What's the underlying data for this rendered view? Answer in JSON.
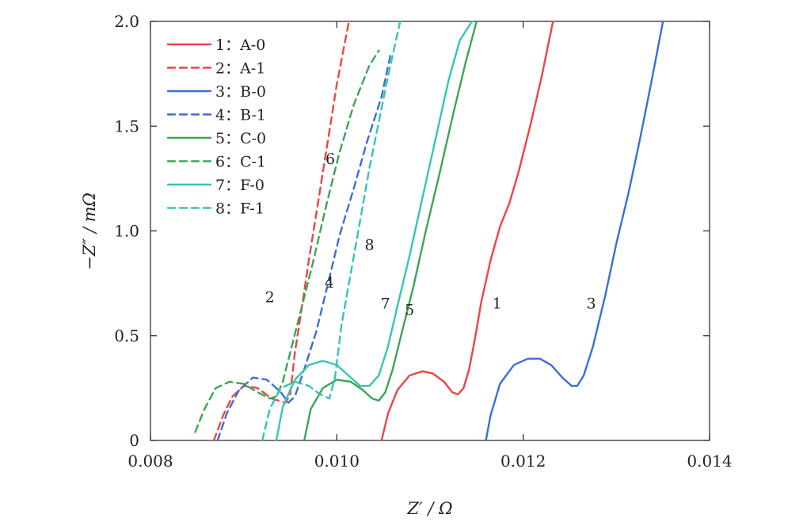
{
  "chart_data": {
    "type": "line",
    "title": "",
    "xlabel": "Z′ / Ω",
    "ylabel": "−Z″ / mΩ",
    "xlim": [
      0.008,
      0.014
    ],
    "ylim": [
      0,
      2.0
    ],
    "x_ticks": [
      0.008,
      0.01,
      0.012,
      0.014
    ],
    "x_tick_labels": [
      "0.008",
      "0.010",
      "0.012",
      "0.014"
    ],
    "y_ticks": [
      0,
      0.5,
      1.0,
      1.5,
      2.0
    ],
    "y_tick_labels": [
      "0",
      "0.5",
      "1.0",
      "1.5",
      "2.0"
    ],
    "grid": false,
    "legend_position": "top-left",
    "series": [
      {
        "id": "1",
        "name": "1：A-0",
        "color": "#ef4444",
        "dash": "solid",
        "x": [
          0.01048,
          0.01055,
          0.01065,
          0.01078,
          0.01092,
          0.01103,
          0.01115,
          0.01124,
          0.0113,
          0.01136,
          0.01142,
          0.01148,
          0.01155,
          0.01165,
          0.01175,
          0.01185,
          0.01195,
          0.01208,
          0.0122,
          0.01232
        ],
        "y": [
          0.0,
          0.13,
          0.24,
          0.31,
          0.33,
          0.32,
          0.28,
          0.23,
          0.22,
          0.25,
          0.34,
          0.48,
          0.66,
          0.86,
          1.02,
          1.13,
          1.28,
          1.51,
          1.74,
          2.0
        ]
      },
      {
        "id": "2",
        "name": "2：A-1",
        "color": "#ef4444",
        "dash": "dashed",
        "x": [
          0.00868,
          0.00878,
          0.00888,
          0.009,
          0.00915,
          0.0093,
          0.00945,
          0.0095,
          0.00955,
          0.00962,
          0.0097,
          0.0098,
          0.0099,
          0.01,
          0.01013
        ],
        "y": [
          0.0,
          0.12,
          0.21,
          0.26,
          0.25,
          0.2,
          0.18,
          0.22,
          0.42,
          0.62,
          0.86,
          1.14,
          1.42,
          1.7,
          2.0
        ]
      },
      {
        "id": "3",
        "name": "3：B-0",
        "color": "#3b6fd6",
        "dash": "solid",
        "x": [
          0.0116,
          0.01165,
          0.01175,
          0.0119,
          0.01205,
          0.01218,
          0.0123,
          0.01242,
          0.01252,
          0.01258,
          0.01265,
          0.01275,
          0.01288,
          0.013,
          0.01313,
          0.01325,
          0.01338,
          0.0135
        ],
        "y": [
          0.0,
          0.12,
          0.27,
          0.36,
          0.39,
          0.39,
          0.36,
          0.3,
          0.26,
          0.26,
          0.31,
          0.45,
          0.69,
          0.94,
          1.18,
          1.43,
          1.72,
          2.0
        ]
      },
      {
        "id": "4",
        "name": "4：B-1",
        "color": "#3b6fd6",
        "dash": "dashed",
        "x": [
          0.00872,
          0.00882,
          0.00895,
          0.0091,
          0.00925,
          0.0094,
          0.00948,
          0.00955,
          0.00965,
          0.00978,
          0.0099,
          0.01003,
          0.01018,
          0.01032,
          0.01048,
          0.01058
        ],
        "y": [
          0.0,
          0.13,
          0.24,
          0.3,
          0.29,
          0.23,
          0.18,
          0.21,
          0.34,
          0.52,
          0.74,
          0.98,
          1.2,
          1.42,
          1.64,
          1.85
        ]
      },
      {
        "id": "5",
        "name": "5：C-0",
        "color": "#3aa655",
        "dash": "solid",
        "x": [
          0.00965,
          0.00972,
          0.00985,
          0.01,
          0.01015,
          0.01028,
          0.01038,
          0.01045,
          0.01052,
          0.0106,
          0.0107,
          0.01082,
          0.01095,
          0.0111,
          0.01125,
          0.01138,
          0.0115
        ],
        "y": [
          0.0,
          0.15,
          0.25,
          0.29,
          0.28,
          0.24,
          0.2,
          0.19,
          0.23,
          0.34,
          0.52,
          0.73,
          0.99,
          1.27,
          1.56,
          1.8,
          2.0
        ]
      },
      {
        "id": "6",
        "name": "6：C-1",
        "color": "#3aa655",
        "dash": "dashed",
        "x": [
          0.00848,
          0.00858,
          0.0087,
          0.00885,
          0.009,
          0.00915,
          0.00928,
          0.00935,
          0.00942,
          0.0095,
          0.00962,
          0.00975,
          0.00988,
          0.01002,
          0.01018,
          0.01035,
          0.01045
        ],
        "y": [
          0.04,
          0.15,
          0.25,
          0.28,
          0.27,
          0.23,
          0.2,
          0.21,
          0.28,
          0.42,
          0.63,
          0.86,
          1.11,
          1.36,
          1.6,
          1.79,
          1.86
        ]
      },
      {
        "id": "7",
        "name": "7：F-0",
        "color": "#38c4b4",
        "dash": "solid",
        "x": [
          0.00935,
          0.00942,
          0.00955,
          0.0097,
          0.00985,
          0.01,
          0.01015,
          0.01025,
          0.01035,
          0.01045,
          0.01055,
          0.01065,
          0.01078,
          0.0109,
          0.01105,
          0.0112,
          0.01132,
          0.01145
        ],
        "y": [
          0.0,
          0.16,
          0.29,
          0.36,
          0.38,
          0.36,
          0.3,
          0.26,
          0.26,
          0.31,
          0.45,
          0.64,
          0.88,
          1.12,
          1.42,
          1.72,
          1.91,
          2.0
        ]
      },
      {
        "id": "8",
        "name": "8：F-1",
        "color": "#38c4b4",
        "dash": "dashed",
        "x": [
          0.0092,
          0.00928,
          0.0094,
          0.00955,
          0.0097,
          0.00982,
          0.00992,
          0.00998,
          0.01005,
          0.01015,
          0.01025,
          0.01035,
          0.01045,
          0.01055,
          0.01062,
          0.01068
        ],
        "y": [
          0.0,
          0.15,
          0.25,
          0.28,
          0.26,
          0.22,
          0.2,
          0.3,
          0.55,
          0.8,
          1.05,
          1.3,
          1.52,
          1.74,
          1.88,
          2.0
        ]
      }
    ],
    "curve_labels": [
      {
        "text": "2",
        "x": 0.00928,
        "y": 0.66
      },
      {
        "text": "6",
        "x": 0.00993,
        "y": 1.32
      },
      {
        "text": "4",
        "x": 0.00992,
        "y": 0.73
      },
      {
        "text": "8",
        "x": 0.01035,
        "y": 0.91
      },
      {
        "text": "7",
        "x": 0.01052,
        "y": 0.63
      },
      {
        "text": "5",
        "x": 0.01078,
        "y": 0.6
      },
      {
        "text": "1",
        "x": 0.01172,
        "y": 0.63
      },
      {
        "text": "3",
        "x": 0.01273,
        "y": 0.63
      }
    ]
  }
}
